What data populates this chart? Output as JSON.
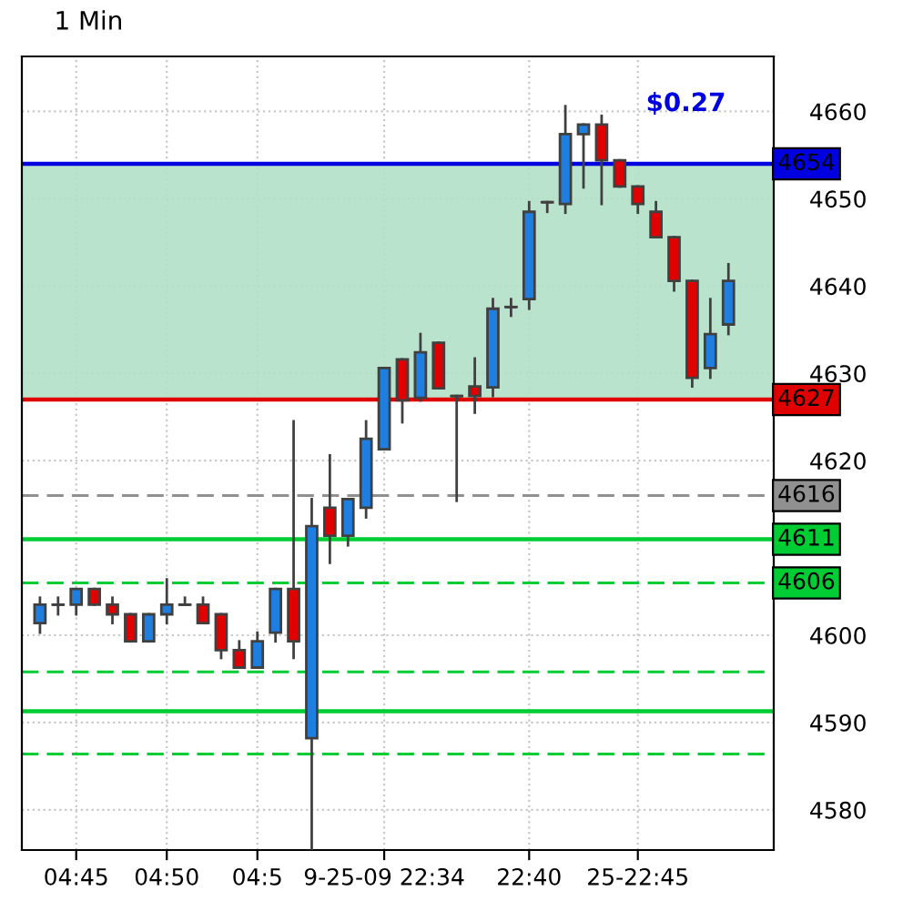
{
  "chart_data": {
    "type": "candlestick",
    "title": "1 Min",
    "categories": [
      null,
      null,
      "04:45",
      null,
      null,
      null,
      null,
      "04:50",
      null,
      null,
      null,
      null,
      "04:5",
      null,
      null,
      null,
      null,
      null,
      null,
      "9-25-09 22:34",
      null,
      null,
      null,
      null,
      null,
      null,
      null,
      "22:40",
      null,
      null,
      null,
      null,
      null,
      "25-22:45",
      null,
      null,
      null,
      null,
      null
    ],
    "ohlc": [
      [
        4601.4,
        4604.3,
        4600.3,
        4603.5
      ],
      [
        4603.5,
        4604.3,
        4602.4,
        4603.5
      ],
      [
        4603.5,
        4605.3,
        4602.4,
        4605.3
      ],
      [
        4605.3,
        4605.3,
        4603.5,
        4603.5
      ],
      [
        4603.5,
        4604.3,
        4601.4,
        4602.4
      ],
      [
        4602.4,
        4602.4,
        4599.3,
        4599.3
      ],
      [
        4599.3,
        4602.4,
        4599.3,
        4602.4
      ],
      [
        4602.4,
        4606.4,
        4601.4,
        4603.5
      ],
      [
        4603.5,
        4604.3,
        4603.5,
        4603.5
      ],
      [
        4603.5,
        4604.3,
        4601.4,
        4601.4
      ],
      [
        4602.4,
        4602.4,
        4597.4,
        4598.3
      ],
      [
        4598.3,
        4599.3,
        4596.3,
        4596.3
      ],
      [
        4596.3,
        4600.3,
        4596.3,
        4599.3
      ],
      [
        4600.3,
        4605.3,
        4599.3,
        4605.3
      ],
      [
        4605.3,
        4624.5,
        4597.4,
        4599.3
      ],
      [
        4588.2,
        4615.6,
        4575.5,
        4612.5
      ],
      [
        4614.6,
        4620.6,
        4608.3,
        4611.4
      ],
      [
        4611.4,
        4615.6,
        4610.3,
        4615.6
      ],
      [
        4614.6,
        4624.5,
        4613.5,
        4622.5
      ],
      [
        4621.3,
        4630.6,
        4621.3,
        4630.6
      ],
      [
        4631.6,
        4631.6,
        4624.4,
        4626.9
      ],
      [
        4627.2,
        4634.5,
        4626.9,
        4632.4
      ],
      [
        4633.5,
        4633.5,
        4628.3,
        4628.3
      ],
      [
        4627.4,
        4627.4,
        4615.4,
        4627.4
      ],
      [
        4628.5,
        4631.7,
        4625.5,
        4627.4
      ],
      [
        4628.4,
        4638.5,
        4627.4,
        4637.4
      ],
      [
        4637.6,
        4638.5,
        4636.6,
        4637.6
      ],
      [
        4638.5,
        4649.6,
        4637.4,
        4648.5
      ],
      [
        4649.6,
        4649.6,
        4648.5,
        4649.6
      ],
      [
        4649.4,
        4660.6,
        4648.4,
        4657.4
      ],
      [
        4657.4,
        4658.5,
        4651.3,
        4658.5
      ],
      [
        4658.5,
        4659.5,
        4649.4,
        4654.4
      ],
      [
        4654.4,
        4654.4,
        4651.4,
        4651.4
      ],
      [
        4651.4,
        4651.4,
        4648.4,
        4649.4
      ],
      [
        4648.5,
        4649.6,
        4645.6,
        4645.6
      ],
      [
        4645.6,
        4645.6,
        4639.5,
        4640.6
      ],
      [
        4640.6,
        4640.6,
        4628.5,
        4629.5
      ],
      [
        4630.6,
        4638.5,
        4629.5,
        4634.5
      ],
      [
        4635.6,
        4642.5,
        4634.5,
        4640.6
      ]
    ],
    "colors": [
      "#1e7fe0",
      "#404040",
      "#1e7fe0",
      "#e00000",
      "#e00000",
      "#e00000",
      "#1e7fe0",
      "#1e7fe0",
      "#404040",
      "#e00000",
      "#e00000",
      "#e00000",
      "#1e7fe0",
      "#1e7fe0",
      "#e00000",
      "#1e7fe0",
      "#e00000",
      "#1e7fe0",
      "#1e7fe0",
      "#1e7fe0",
      "#e00000",
      "#1e7fe0",
      "#e00000",
      "#404040",
      "#e00000",
      "#1e7fe0",
      "#404040",
      "#1e7fe0",
      "#404040",
      "#1e7fe0",
      "#1e7fe0",
      "#e00000",
      "#e00000",
      "#e00000",
      "#e00000",
      "#e00000",
      "#e00000",
      "#1e7fe0",
      "#1e7fe0"
    ],
    "ylim": [
      4575.4,
      4666.3
    ],
    "yticks": [
      4580,
      4590,
      4600,
      4620,
      4630,
      4640,
      4650,
      4660
    ],
    "ref_lines": [
      {
        "axis": "y",
        "value": 4654,
        "label": "4654",
        "color": "#0000e0",
        "line_style": "solid"
      },
      {
        "axis": "y",
        "value": 4627,
        "label": "4627",
        "color": "#e00000",
        "line_style": "solid"
      },
      {
        "axis": "y",
        "value": 4616,
        "label": "4616",
        "color": "#909090",
        "line_style": "dashed"
      },
      {
        "axis": "y",
        "value": 4611,
        "label": "4611",
        "color": "#00cc33",
        "line_style": "solid"
      },
      {
        "axis": "y",
        "value": 4606,
        "label": "4606",
        "color": "#00cc33",
        "line_style": "dashed"
      },
      {
        "axis": "y",
        "value": 4595.8,
        "color": "#00cc33",
        "line_style": "dashed"
      },
      {
        "axis": "y",
        "value": 4591.3,
        "color": "#00cc33",
        "line_style": "solid"
      },
      {
        "axis": "y",
        "value": 4586.4,
        "color": "#00cc33",
        "line_style": "dashed"
      }
    ],
    "bands": [
      {
        "axis": "y",
        "from": 4627,
        "to": 4654,
        "color": "#b3e0c8"
      }
    ],
    "annotations": [
      "$0.27"
    ],
    "grid": true
  }
}
